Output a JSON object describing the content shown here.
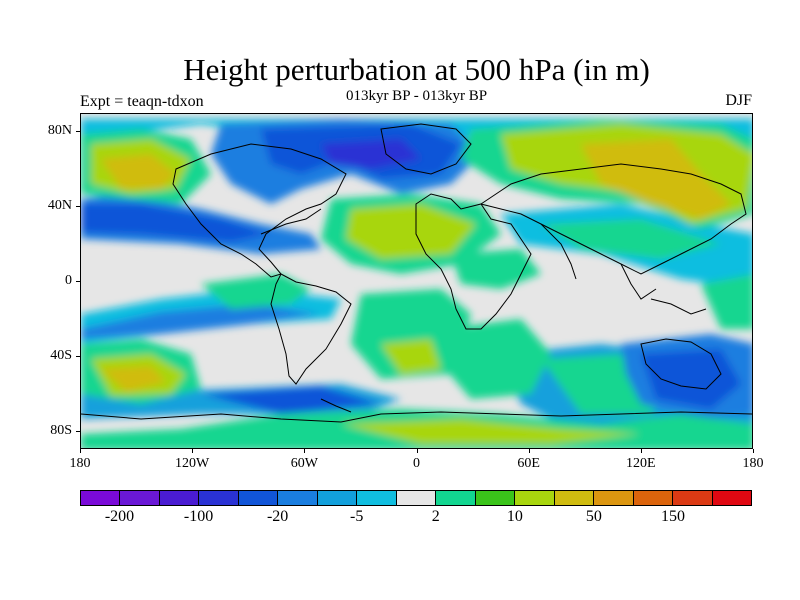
{
  "title": "Height perturbation at 500 hPa (in m)",
  "subtitle": "013kyr BP - 013kyr BP",
  "experiment": "Expt = teaqn-tdxon",
  "season": "DJF",
  "map": {
    "lat_labels": [
      {
        "text": "80N",
        "lat": 80
      },
      {
        "text": "40N",
        "lat": 40
      },
      {
        "text": "0",
        "lat": 0
      },
      {
        "text": "40S",
        "lat": -40
      },
      {
        "text": "80S",
        "lat": -80
      }
    ],
    "lon_labels": [
      {
        "text": "180",
        "lon": -180
      },
      {
        "text": "120W",
        "lon": -120
      },
      {
        "text": "60W",
        "lon": -60
      },
      {
        "text": "0",
        "lon": 0
      },
      {
        "text": "60E",
        "lon": 60
      },
      {
        "text": "120E",
        "lon": 120
      },
      {
        "text": "180",
        "lon": 180
      }
    ]
  },
  "colorbar": {
    "colors": [
      "#7a0ad8",
      "#6a18d6",
      "#4a1cd2",
      "#2a32d4",
      "#1155d8",
      "#1a7ee0",
      "#12a0dc",
      "#10bee0",
      "#e6e6e6",
      "#12d690",
      "#3ac41a",
      "#a8d60e",
      "#d0bc10",
      "#dc9610",
      "#dc640c",
      "#dc3a14",
      "#e00812"
    ],
    "labels": [
      {
        "text": "-200",
        "index": 1
      },
      {
        "text": "-100",
        "index": 3
      },
      {
        "text": "-20",
        "index": 5
      },
      {
        "text": "-5",
        "index": 7
      },
      {
        "text": "2",
        "index": 9
      },
      {
        "text": "10",
        "index": 11
      },
      {
        "text": "50",
        "index": 13
      },
      {
        "text": "150",
        "index": 15
      }
    ]
  }
}
